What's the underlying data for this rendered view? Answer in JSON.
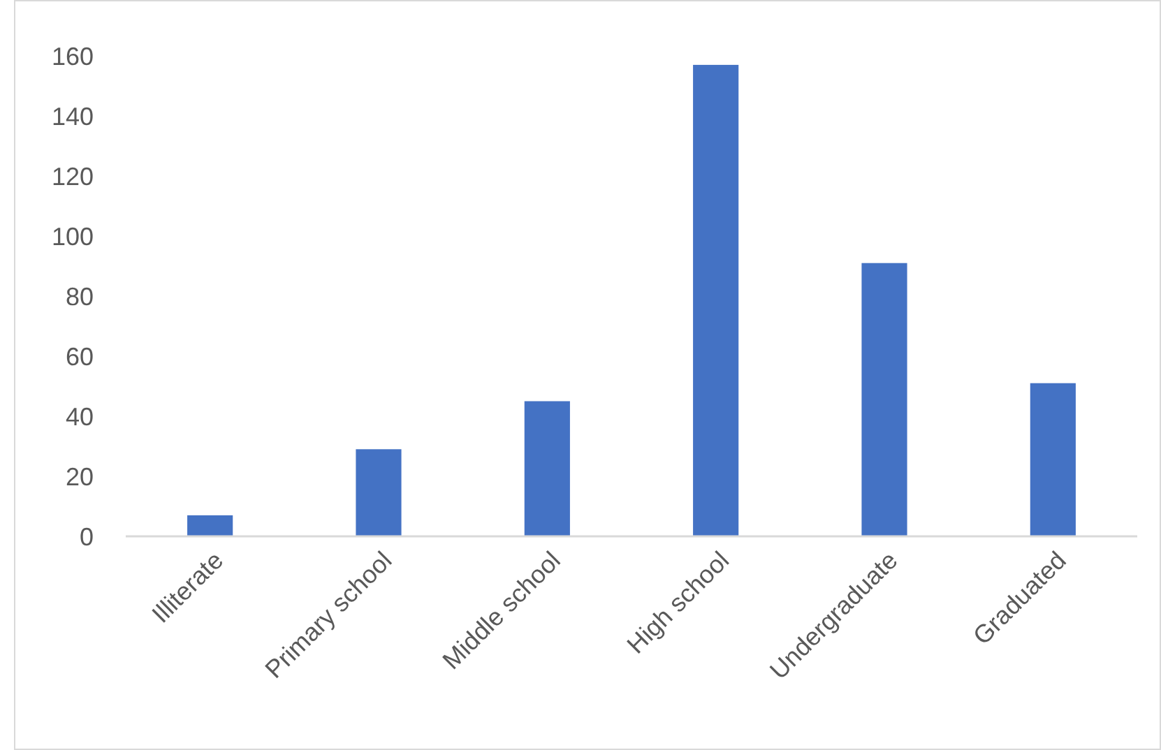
{
  "chart_data": {
    "type": "bar",
    "categories": [
      "Illiterate",
      "Primary school",
      "Middle school",
      "High school",
      "Undergraduate",
      "Graduated"
    ],
    "values": [
      7,
      29,
      45,
      157,
      91,
      51
    ],
    "color": "#4472c4",
    "ylim": [
      0,
      160
    ],
    "yticks": [
      0,
      20,
      40,
      60,
      80,
      100,
      120,
      140,
      160
    ],
    "grid": false
  }
}
